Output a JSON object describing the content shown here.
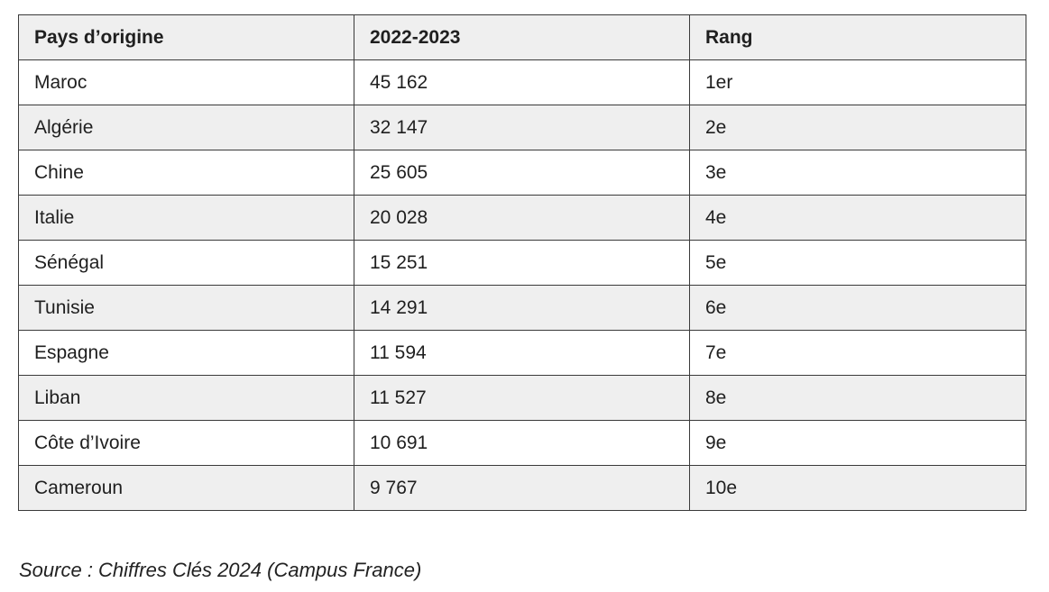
{
  "table": {
    "headers": [
      "Pays d’origine",
      "2022-2023",
      "Rang"
    ],
    "rows": [
      [
        "Maroc",
        "45 162",
        "1er"
      ],
      [
        "Algérie",
        "32 147",
        "2e"
      ],
      [
        "Chine",
        "25 605",
        "3e"
      ],
      [
        "Italie",
        "20 028",
        "4e"
      ],
      [
        "Sénégal",
        "15 251",
        "5e"
      ],
      [
        "Tunisie",
        "14 291",
        "6e"
      ],
      [
        "Espagne",
        "11 594",
        "7e"
      ],
      [
        "Liban",
        "11 527",
        "8e"
      ],
      [
        "Côte d’Ivoire",
        "10 691",
        "9e"
      ],
      [
        "Cameroun",
        "9 767",
        "10e"
      ]
    ]
  },
  "source": "Source : Chiffres Clés 2024 (Campus France)",
  "colors": {
    "header_bg": "#efefef",
    "row_alt_bg": "#efefef",
    "row_bg": "#ffffff",
    "border": "#3a3a3a"
  }
}
